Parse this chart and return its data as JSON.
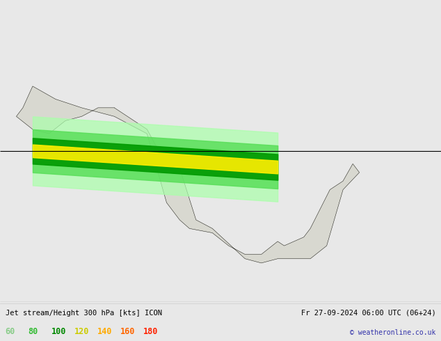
{
  "title_left": "Jet stream/Height 300 hPa [kts] ICON",
  "title_right": "Fr 27-09-2024 06:00 UTC (06+24)",
  "copyright": "© weatheronline.co.uk",
  "legend_values": [
    "60",
    "80",
    "100",
    "120",
    "140",
    "160",
    "180"
  ],
  "legend_colors": [
    "#88cc88",
    "#33bb33",
    "#008800",
    "#cccc00",
    "#ffaa00",
    "#ff6600",
    "#ff2200"
  ],
  "bg_color": "#e8e8e8",
  "ocean_color": "#c8d8c8",
  "land_color": "#d8d8d0",
  "figsize": [
    6.34,
    4.9
  ],
  "dpi": 100,
  "extent": [
    -175,
    -40,
    15,
    85
  ],
  "jet_colors": [
    "#aaffaa",
    "#55dd55",
    "#009900",
    "#ffee00",
    "#ffaa00",
    "#ff6600",
    "#ff2200"
  ],
  "jet_levels": [
    60,
    80,
    100,
    120,
    140,
    160,
    180,
    999
  ]
}
